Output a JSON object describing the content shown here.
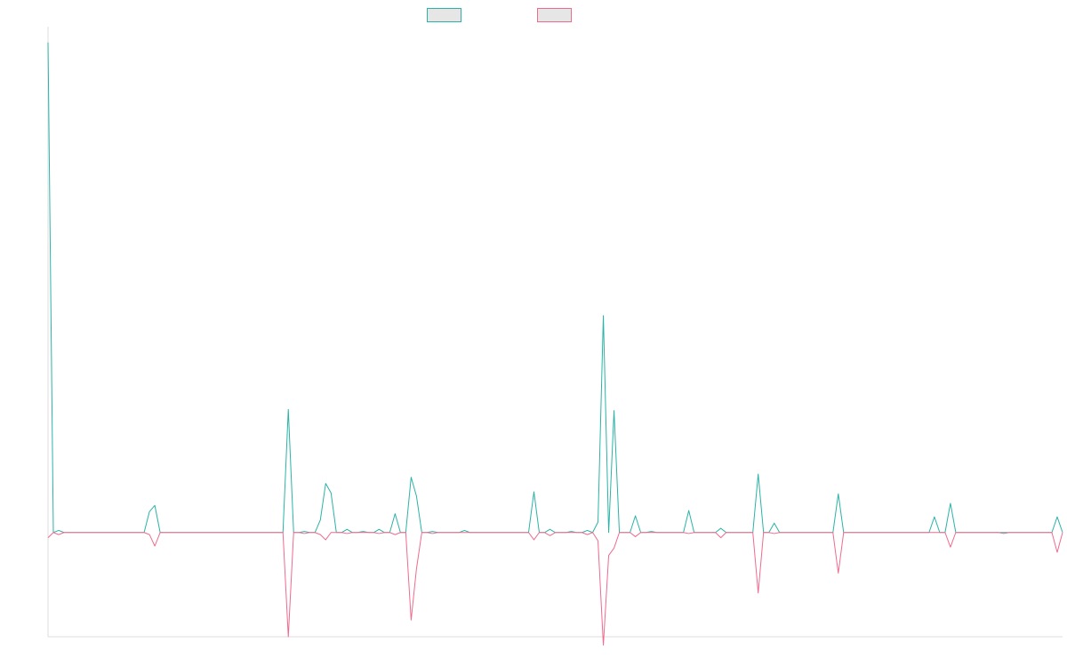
{
  "chart_data": {
    "type": "line",
    "title": "",
    "xlabel": "",
    "ylabel": "",
    "grid": false,
    "legend_position": "top-center",
    "ylim": [
      -100,
      480
    ],
    "baseline": 0,
    "n_points": 191,
    "series": [
      {
        "color": "#2ab3a6",
        "fill": "none",
        "points": [
          [
            0,
            470
          ],
          [
            1,
            0
          ],
          [
            2,
            2
          ],
          [
            3,
            0
          ],
          [
            18,
            0
          ],
          [
            19,
            20
          ],
          [
            20,
            26
          ],
          [
            21,
            0
          ],
          [
            44,
            0
          ],
          [
            45,
            118
          ],
          [
            46,
            0
          ],
          [
            47,
            0
          ],
          [
            48,
            1
          ],
          [
            49,
            0
          ],
          [
            50,
            0
          ],
          [
            51,
            12
          ],
          [
            52,
            47
          ],
          [
            53,
            38
          ],
          [
            54,
            0
          ],
          [
            55,
            0
          ],
          [
            56,
            3
          ],
          [
            57,
            0
          ],
          [
            58,
            0
          ],
          [
            59,
            1
          ],
          [
            60,
            0
          ],
          [
            61,
            0
          ],
          [
            62,
            3
          ],
          [
            63,
            0
          ],
          [
            64,
            0
          ],
          [
            65,
            18
          ],
          [
            66,
            0
          ],
          [
            67,
            0
          ],
          [
            68,
            53
          ],
          [
            69,
            35
          ],
          [
            70,
            0
          ],
          [
            71,
            0
          ],
          [
            72,
            1
          ],
          [
            73,
            0
          ],
          [
            77,
            0
          ],
          [
            78,
            2
          ],
          [
            79,
            0
          ],
          [
            82,
            0
          ],
          [
            83,
            0
          ],
          [
            84,
            0
          ],
          [
            90,
            0
          ],
          [
            91,
            39
          ],
          [
            92,
            0
          ],
          [
            93,
            0
          ],
          [
            94,
            3
          ],
          [
            95,
            0
          ],
          [
            97,
            0
          ],
          [
            98,
            1
          ],
          [
            99,
            0
          ],
          [
            100,
            0
          ],
          [
            101,
            2
          ],
          [
            102,
            0
          ],
          [
            103,
            10
          ],
          [
            104,
            208
          ],
          [
            105,
            0
          ],
          [
            106,
            117
          ],
          [
            107,
            0
          ],
          [
            109,
            0
          ],
          [
            110,
            16
          ],
          [
            111,
            0
          ],
          [
            112,
            0
          ],
          [
            113,
            1
          ],
          [
            114,
            0
          ],
          [
            119,
            0
          ],
          [
            120,
            21
          ],
          [
            121,
            0
          ],
          [
            125,
            0
          ],
          [
            126,
            4
          ],
          [
            127,
            0
          ],
          [
            132,
            0
          ],
          [
            133,
            56
          ],
          [
            134,
            0
          ],
          [
            135,
            0
          ],
          [
            136,
            9
          ],
          [
            137,
            0
          ],
          [
            147,
            0
          ],
          [
            148,
            37
          ],
          [
            149,
            0
          ],
          [
            165,
            0
          ],
          [
            166,
            15
          ],
          [
            167,
            0
          ],
          [
            168,
            0
          ],
          [
            169,
            28
          ],
          [
            170,
            0
          ],
          [
            178,
            0
          ],
          [
            179,
            0
          ],
          [
            180,
            0
          ],
          [
            188,
            0
          ],
          [
            189,
            15
          ],
          [
            190,
            0
          ]
        ]
      },
      {
        "color": "#f06a8e",
        "fill": "none",
        "points": [
          [
            0,
            -5
          ],
          [
            1,
            0
          ],
          [
            2,
            -2
          ],
          [
            3,
            0
          ],
          [
            18,
            0
          ],
          [
            19,
            -2
          ],
          [
            20,
            -13
          ],
          [
            21,
            0
          ],
          [
            44,
            0
          ],
          [
            45,
            -100
          ],
          [
            46,
            0
          ],
          [
            47,
            0
          ],
          [
            48,
            -1
          ],
          [
            49,
            0
          ],
          [
            50,
            0
          ],
          [
            51,
            -2
          ],
          [
            52,
            -7
          ],
          [
            53,
            0
          ],
          [
            55,
            0
          ],
          [
            56,
            -1
          ],
          [
            57,
            0
          ],
          [
            61,
            0
          ],
          [
            62,
            -1
          ],
          [
            63,
            0
          ],
          [
            64,
            0
          ],
          [
            65,
            -2
          ],
          [
            66,
            0
          ],
          [
            67,
            0
          ],
          [
            68,
            -84
          ],
          [
            69,
            -35
          ],
          [
            70,
            0
          ],
          [
            71,
            0
          ],
          [
            72,
            -1
          ],
          [
            73,
            0
          ],
          [
            90,
            0
          ],
          [
            91,
            -7
          ],
          [
            92,
            0
          ],
          [
            93,
            0
          ],
          [
            94,
            -3
          ],
          [
            95,
            0
          ],
          [
            100,
            0
          ],
          [
            101,
            -2
          ],
          [
            102,
            0
          ],
          [
            103,
            -8
          ],
          [
            104,
            -108
          ],
          [
            105,
            -22
          ],
          [
            106,
            -15
          ],
          [
            107,
            0
          ],
          [
            109,
            0
          ],
          [
            110,
            -4
          ],
          [
            111,
            0
          ],
          [
            119,
            0
          ],
          [
            120,
            -1
          ],
          [
            121,
            0
          ],
          [
            125,
            0
          ],
          [
            126,
            -5
          ],
          [
            127,
            0
          ],
          [
            132,
            0
          ],
          [
            133,
            -58
          ],
          [
            134,
            0
          ],
          [
            135,
            0
          ],
          [
            136,
            -1
          ],
          [
            137,
            0
          ],
          [
            147,
            0
          ],
          [
            148,
            -39
          ],
          [
            149,
            0
          ],
          [
            168,
            0
          ],
          [
            169,
            -14
          ],
          [
            170,
            0
          ],
          [
            178,
            0
          ],
          [
            179,
            -1
          ],
          [
            180,
            0
          ],
          [
            188,
            0
          ],
          [
            189,
            -19
          ],
          [
            190,
            0
          ]
        ]
      }
    ]
  }
}
